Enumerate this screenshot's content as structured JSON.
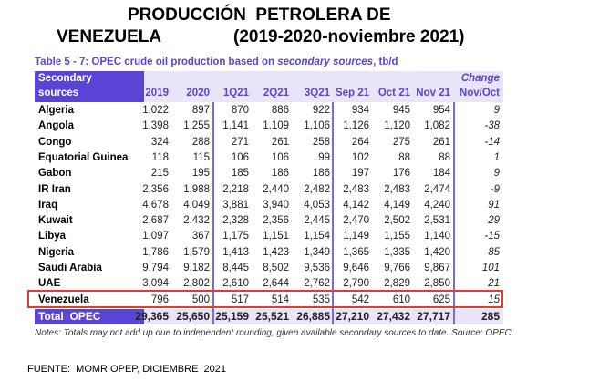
{
  "title": {
    "line1": "PRODUCCIÓN  PETROLERA DE",
    "line2_left": "VENEZUELA",
    "line2_right": "(2019-2020-noviembre 2021)"
  },
  "table": {
    "caption_prefix": "Table 5 - 7: OPEC crude oil production based on ",
    "caption_italic": "secondary sources",
    "caption_suffix": ", tb/d",
    "header_left_1": "Secondary",
    "header_left_2": "sources",
    "columns": [
      "2019",
      "2020",
      "1Q21",
      "2Q21",
      "3Q21",
      "Sep 21",
      "Oct 21",
      "Nov 21"
    ],
    "change_1": "Change",
    "change_2": "Nov/Oct",
    "rows": [
      {
        "name": "Algeria",
        "values": [
          "1,022",
          "897",
          "870",
          "886",
          "922",
          "934",
          "945",
          "954"
        ],
        "change": "9"
      },
      {
        "name": "Angola",
        "values": [
          "1,398",
          "1,255",
          "1,141",
          "1,109",
          "1,106",
          "1,126",
          "1,120",
          "1,082"
        ],
        "change": "-38"
      },
      {
        "name": "Congo",
        "values": [
          "324",
          "288",
          "271",
          "261",
          "258",
          "264",
          "275",
          "261"
        ],
        "change": "-14"
      },
      {
        "name": "Equatorial Guinea",
        "values": [
          "118",
          "115",
          "106",
          "106",
          "99",
          "102",
          "88",
          "88"
        ],
        "change": "1"
      },
      {
        "name": "Gabon",
        "values": [
          "215",
          "195",
          "185",
          "186",
          "186",
          "197",
          "176",
          "184"
        ],
        "change": "9"
      },
      {
        "name": "IR Iran",
        "values": [
          "2,356",
          "1,988",
          "2,218",
          "2,440",
          "2,482",
          "2,483",
          "2,483",
          "2,474"
        ],
        "change": "-9"
      },
      {
        "name": "Iraq",
        "values": [
          "4,678",
          "4,049",
          "3,881",
          "3,940",
          "4,053",
          "4,142",
          "4,149",
          "4,240"
        ],
        "change": "91"
      },
      {
        "name": "Kuwait",
        "values": [
          "2,687",
          "2,432",
          "2,328",
          "2,356",
          "2,445",
          "2,470",
          "2,502",
          "2,531"
        ],
        "change": "29"
      },
      {
        "name": "Libya",
        "values": [
          "1,097",
          "367",
          "1,175",
          "1,151",
          "1,154",
          "1,149",
          "1,155",
          "1,140"
        ],
        "change": "-15"
      },
      {
        "name": "Nigeria",
        "values": [
          "1,786",
          "1,579",
          "1,413",
          "1,423",
          "1,349",
          "1,365",
          "1,335",
          "1,420"
        ],
        "change": "85"
      },
      {
        "name": "Saudi Arabia",
        "values": [
          "9,794",
          "9,182",
          "8,445",
          "8,502",
          "9,536",
          "9,646",
          "9,766",
          "9,867"
        ],
        "change": "101"
      },
      {
        "name": "UAE",
        "values": [
          "3,094",
          "2,802",
          "2,610",
          "2,644",
          "2,762",
          "2,790",
          "2,829",
          "2,850"
        ],
        "change": "21"
      },
      {
        "name": "Venezuela",
        "values": [
          "796",
          "500",
          "517",
          "514",
          "535",
          "542",
          "610",
          "625"
        ],
        "change": "15"
      }
    ],
    "total": {
      "name": "Total  OPEC",
      "values": [
        "29,365",
        "25,650",
        "25,159",
        "25,521",
        "26,885",
        "27,210",
        "27,432",
        "27,717"
      ],
      "change": "285"
    },
    "note": "Notes: Totals may not add up due to independent rounding, given available secondary sources to date. Source: OPEC."
  },
  "footer": "FUENTE:  MOMR OPEP, DICIEMBRE  2021"
}
